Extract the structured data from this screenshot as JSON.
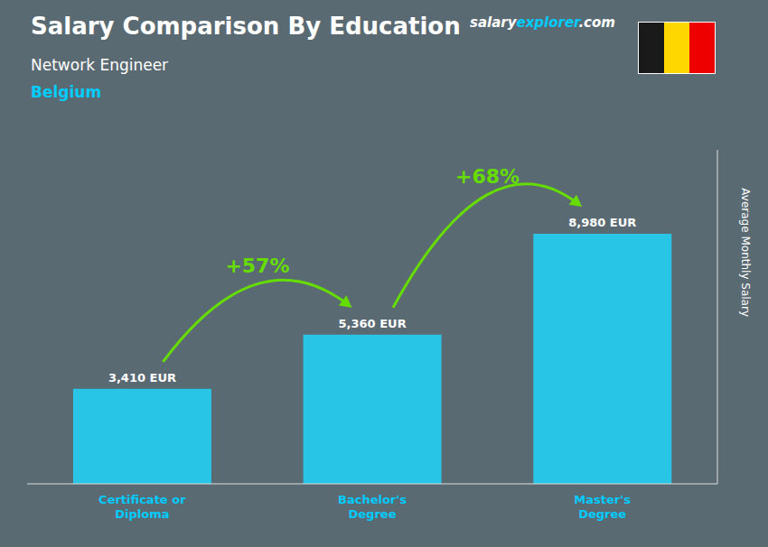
{
  "chart_data": {
    "type": "bar",
    "title": "Salary Comparison By Education",
    "subtitle": "Network Engineer",
    "country": "Belgium",
    "source": [
      "salary",
      "explorer",
      ".com"
    ],
    "y_label": "Average Monthly Salary",
    "categories": [
      "Certificate or\nDiploma",
      "Bachelor's\nDegree",
      "Master's\nDegree"
    ],
    "values": [
      3410,
      5360,
      8980
    ],
    "value_labels": [
      "3,410 EUR",
      "5,360 EUR",
      "8,980 EUR"
    ],
    "data_labels": true,
    "annotations": [
      "+57%",
      "+68%"
    ],
    "color": "#29c5e6",
    "ylim": [
      0,
      12000
    ],
    "grid": false,
    "tick_labels": "x"
  }
}
